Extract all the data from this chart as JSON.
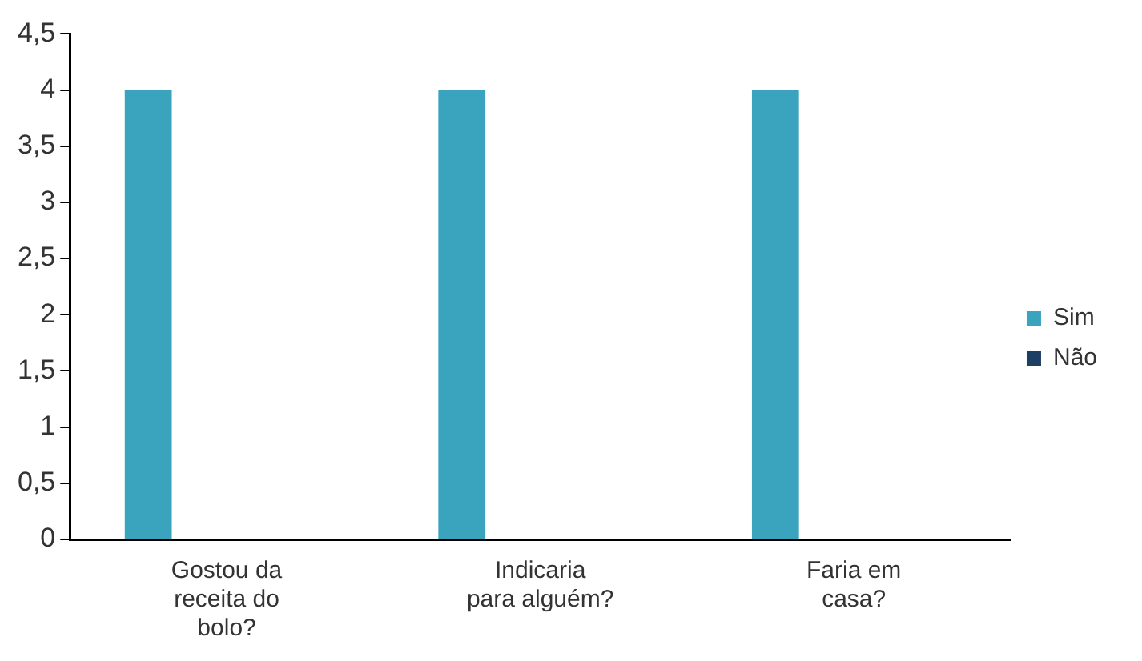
{
  "chart_data": {
    "type": "bar",
    "categories": [
      "Gostou da receita do bolo?",
      "Indicaria para alguém?",
      "Faria em casa?"
    ],
    "series": [
      {
        "name": "Sim",
        "color": "#3aa3bd",
        "values": [
          4,
          4,
          4
        ]
      },
      {
        "name": "Não",
        "color": "#1c3f63",
        "values": [
          0,
          0,
          0
        ]
      }
    ],
    "ylim": [
      0,
      4.5
    ],
    "yticks": [
      0,
      {
        "value": 0.5,
        "label": "0,5"
      },
      1,
      {
        "value": 1.5,
        "label": "1,5"
      },
      2,
      {
        "value": 2.5,
        "label": "2,5"
      },
      3,
      {
        "value": 3.5,
        "label": "3,5"
      },
      4,
      {
        "value": 4.5,
        "label": "4,5"
      }
    ],
    "grid": false,
    "legend": "right"
  }
}
